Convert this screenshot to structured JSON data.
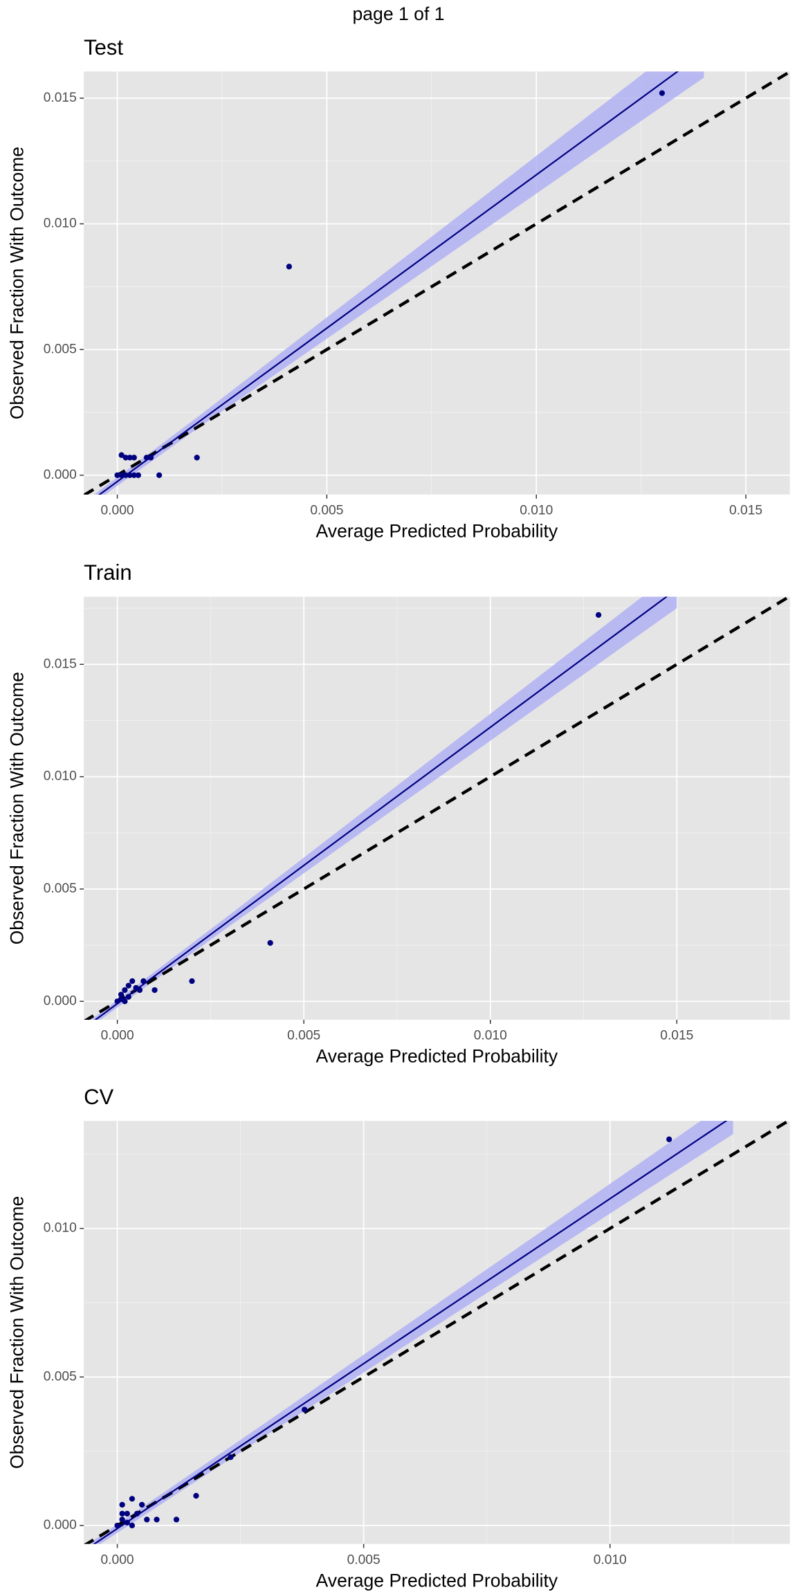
{
  "page_title": "page 1 of 1",
  "chart_data": [
    {
      "type": "scatter",
      "title": "Test",
      "xlabel": "Average Predicted Probability",
      "ylabel": "Observed Fraction With Outcome",
      "xlim": [
        -0.0008,
        0.01605
      ],
      "ylim": [
        -0.00077,
        0.01606
      ],
      "xticks": [
        {
          "value": 0,
          "label": "0.000"
        },
        {
          "value": 0.005,
          "label": "0.005"
        },
        {
          "value": 0.01,
          "label": "0.010"
        },
        {
          "value": 0.015,
          "label": "0.015"
        }
      ],
      "yticks": [
        {
          "value": 0,
          "label": "0.000"
        },
        {
          "value": 0.005,
          "label": "0.005"
        },
        {
          "value": 0.01,
          "label": "0.010"
        },
        {
          "value": 0.015,
          "label": "0.015"
        }
      ],
      "xminor": [
        0.0025,
        0.0075,
        0.0125
      ],
      "yminor": [
        0.0025,
        0.0075,
        0.0125
      ],
      "grid": true,
      "identity_line": true,
      "series": [
        {
          "color": "#000080",
          "x": [
            0.013,
            0.0041,
            0.0019,
            0.001,
            0.0008,
            0.0007,
            0.0004,
            0.0003,
            0.0002,
            0.0001,
            0,
            0.0001,
            0.0002,
            0.0003,
            0.0004,
            0.0005
          ],
          "y": [
            0.0152,
            0.0083,
            0.0007,
            0,
            0.0007,
            0.0007,
            0.0007,
            0.0007,
            0.0007,
            0.0008,
            0,
            0,
            0,
            0,
            0,
            0
          ]
        }
      ],
      "fit": {
        "color": "#000080",
        "band_color": "#aeaef5",
        "x": [
          -0.0008,
          0.002,
          0.005,
          0.008,
          0.011,
          0.014
        ],
        "y": [
          -0.00123,
          0.00219,
          0.00585,
          0.00951,
          0.01317,
          0.01683
        ],
        "lower": [
          -0.00138,
          0.00196,
          0.00543,
          0.00889,
          0.01236,
          0.01582
        ],
        "upper": [
          -0.00108,
          0.00242,
          0.00628,
          0.01013,
          0.01399,
          0.01784
        ]
      }
    },
    {
      "type": "scatter",
      "title": "Train",
      "xlabel": "Average Predicted Probability",
      "ylabel": "Observed Fraction With Outcome",
      "xlim": [
        -0.0009,
        0.01803
      ],
      "ylim": [
        -0.00082,
        0.01801
      ],
      "xticks": [
        {
          "value": 0,
          "label": "0.000"
        },
        {
          "value": 0.005,
          "label": "0.005"
        },
        {
          "value": 0.01,
          "label": "0.010"
        },
        {
          "value": 0.015,
          "label": "0.015"
        }
      ],
      "yticks": [
        {
          "value": 0,
          "label": "0.000"
        },
        {
          "value": 0.005,
          "label": "0.005"
        },
        {
          "value": 0.01,
          "label": "0.010"
        },
        {
          "value": 0.015,
          "label": "0.015"
        }
      ],
      "xminor": [
        0.0025,
        0.0075,
        0.0125,
        0.0175
      ],
      "yminor": [
        0.0025,
        0.0075,
        0.0125,
        0.0175
      ],
      "grid": true,
      "identity_line": true,
      "series": [
        {
          "color": "#000080",
          "x": [
            0.0129,
            0.0041,
            0.002,
            0.001,
            0.0007,
            0.0005,
            0.0004,
            0.0003,
            0.0002,
            0.0001,
            0,
            0.0001,
            0.0002,
            0.0003,
            0.0006
          ],
          "y": [
            0.0172,
            0.0026,
            0.0009,
            0.0005,
            0.0009,
            0.0006,
            0.0009,
            0.0007,
            0.0005,
            0.0003,
            0,
            0.0001,
            0,
            0.0002,
            0.0005
          ]
        }
      ],
      "fit": {
        "color": "#000080",
        "band_color": "#aeaef5",
        "x": [
          -0.0009,
          0.003,
          0.007,
          0.011,
          0.015
        ],
        "y": [
          -0.00121,
          0.00359,
          0.00851,
          0.01343,
          0.01835
        ],
        "lower": [
          -0.00136,
          0.00334,
          0.00806,
          0.01278,
          0.0175
        ],
        "upper": [
          -0.00107,
          0.00384,
          0.00896,
          0.01408,
          0.0192
        ]
      }
    },
    {
      "type": "scatter",
      "title": "CV",
      "xlabel": "Average Predicted Probability",
      "ylabel": "Observed Fraction With Outcome",
      "xlim": [
        -0.00068,
        0.01365
      ],
      "ylim": [
        -0.00062,
        0.01362
      ],
      "xticks": [
        {
          "value": 0,
          "label": "0.000"
        },
        {
          "value": 0.005,
          "label": "0.005"
        },
        {
          "value": 0.01,
          "label": "0.010"
        }
      ],
      "yticks": [
        {
          "value": 0,
          "label": "0.000"
        },
        {
          "value": 0.005,
          "label": "0.005"
        },
        {
          "value": 0.01,
          "label": "0.010"
        }
      ],
      "xminor": [
        0.0025,
        0.0075,
        0.0125
      ],
      "yminor": [
        0.0025,
        0.0075,
        0.0125
      ],
      "grid": true,
      "identity_line": true,
      "series": [
        {
          "color": "#000080",
          "x": [
            0.0112,
            0.0038,
            0.0023,
            0.0016,
            0.0012,
            0.0008,
            0.0006,
            0.0005,
            0.0003,
            0.0002,
            0.0001,
            0,
            0.0001,
            0.0002,
            0.0003,
            0.0004,
            0.0001
          ],
          "y": [
            0.013,
            0.0039,
            0.0023,
            0.001,
            0.0002,
            0.0002,
            0.0002,
            0.0007,
            0.0009,
            0.0004,
            0.0007,
            0,
            0.0002,
            0.0001,
            0,
            0.0004,
            0.0004
          ]
        }
      ],
      "fit": {
        "color": "#000080",
        "band_color": "#aeaef5",
        "x": [
          -0.0007,
          0.003,
          0.006,
          0.009,
          0.0125
        ],
        "y": [
          -0.00088,
          0.00323,
          0.00656,
          0.00989,
          0.01378
        ],
        "lower": [
          -0.00101,
          0.00301,
          0.00622,
          0.00943,
          0.01318
        ],
        "upper": [
          -0.00075,
          0.00345,
          0.0069,
          0.01035,
          0.01438
        ]
      }
    }
  ]
}
